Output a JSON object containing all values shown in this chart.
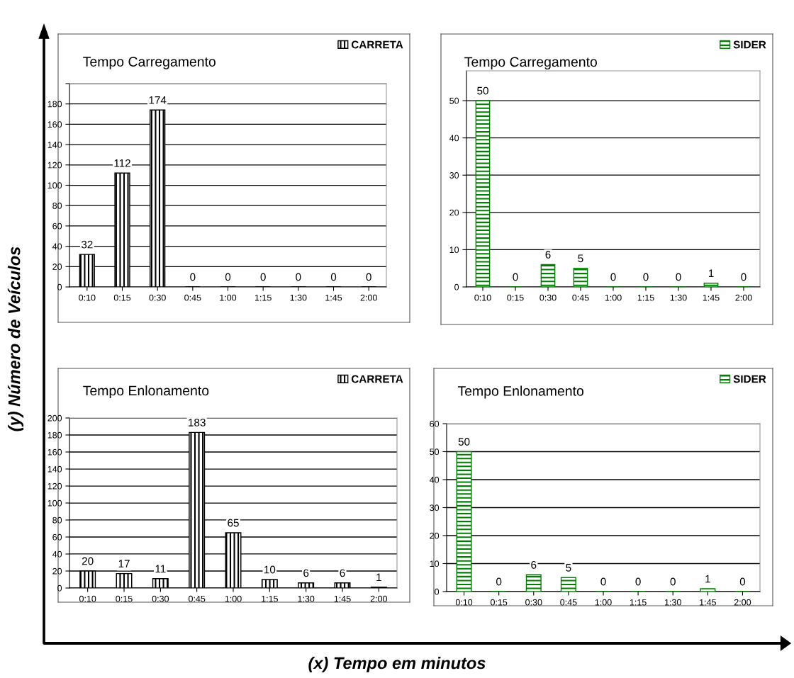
{
  "chart_data": [
    {
      "type": "bar",
      "title": "Tempo Carregamento",
      "categories": [
        "0:10",
        "0:15",
        "0:30",
        "0:45",
        "1:00",
        "1:15",
        "1:30",
        "1:45",
        "2:00"
      ],
      "series": [
        {
          "name": "CARRETA",
          "color": "#000000",
          "values": [
            32,
            112,
            174,
            0,
            0,
            0,
            0,
            0,
            0
          ]
        }
      ],
      "ylim": [
        0,
        200
      ],
      "yticks": [
        0,
        20,
        40,
        60,
        80,
        100,
        120,
        140,
        160,
        180,
        {
          "value": 200,
          "label": null
        }
      ],
      "grid": "y",
      "legend": "top right",
      "data_labels": true,
      "annotations": [
        "(y) Número de Veículos"
      ]
    },
    {
      "type": "bar",
      "title": "Tempo Carregamento",
      "categories": [
        "0:10",
        "0:15",
        "0:30",
        "0:45",
        "1:00",
        "1:15",
        "1:30",
        "1:45",
        "2:00"
      ],
      "series": [
        {
          "name": "SIDER",
          "color": "#008000",
          "values": [
            50,
            0,
            6,
            5,
            0,
            0,
            0,
            1,
            0
          ]
        }
      ],
      "ylim": [
        0,
        58
      ],
      "yticks": [
        0,
        10,
        20,
        30,
        40,
        50
      ],
      "grid": "y",
      "legend": "top right",
      "data_labels": true
    },
    {
      "type": "bar",
      "title": "Tempo Enlonamento",
      "categories": [
        "0:10",
        "0:15",
        "0:30",
        "0:45",
        "1:00",
        "1:15",
        "1:30",
        "1:45",
        "2:00"
      ],
      "series": [
        {
          "name": "CARRETA",
          "color": "#000000",
          "values": [
            20,
            17,
            11,
            183,
            65,
            10,
            6,
            6,
            1
          ]
        }
      ],
      "ylim": [
        0,
        200
      ],
      "yticks": [
        0,
        20,
        40,
        60,
        80,
        100,
        120,
        140,
        160,
        180,
        200
      ],
      "grid": "y",
      "legend": "top right",
      "data_labels": true
    },
    {
      "type": "bar",
      "title": "Tempo Enlonamento",
      "categories": [
        "0:10",
        "0:15",
        "0:30",
        "0:45",
        "1:00",
        "1:15",
        "1:30",
        "1:45",
        "2:00"
      ],
      "series": [
        {
          "name": "SIDER",
          "color": "#008000",
          "values": [
            50,
            0,
            6,
            5,
            0,
            0,
            0,
            1,
            0
          ]
        }
      ],
      "ylim": [
        0,
        60
      ],
      "yticks": [
        0,
        10,
        20,
        30,
        40,
        50,
        60
      ],
      "grid": "y",
      "legend": "top right",
      "data_labels": true,
      "annotations": [
        "(x) Tempo em minutos"
      ]
    }
  ]
}
